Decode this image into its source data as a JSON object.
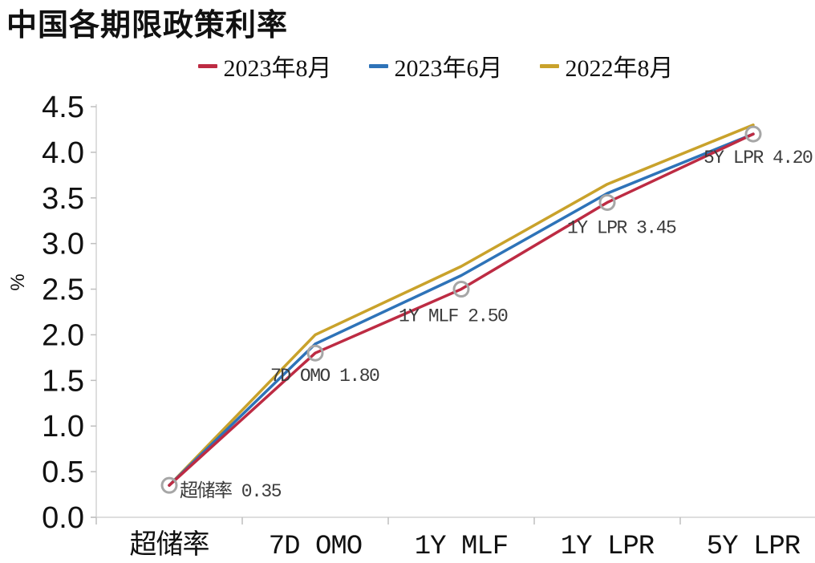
{
  "title": "中国各期限政策利率",
  "legend": [
    {
      "label": "2023年8月",
      "color": "#bd2b43"
    },
    {
      "label": "2023年6月",
      "color": "#2e73b8"
    },
    {
      "label": "2022年8月",
      "color": "#c9a22b"
    }
  ],
  "chart_data": {
    "type": "line",
    "title": "中国各期限政策利率",
    "categories": [
      "超储率",
      "7D OMO",
      "1Y MLF",
      "1Y LPR",
      "5Y LPR"
    ],
    "series": [
      {
        "name": "2023年8月",
        "color": "#bd2b43",
        "values": [
          0.35,
          1.8,
          2.5,
          3.45,
          4.2
        ],
        "markers": true
      },
      {
        "name": "2023年6月",
        "color": "#2e73b8",
        "values": [
          0.35,
          1.9,
          2.65,
          3.55,
          4.2
        ],
        "markers": false
      },
      {
        "name": "2022年8月",
        "color": "#c9a22b",
        "values": [
          0.35,
          2.0,
          2.75,
          3.65,
          4.3
        ],
        "markers": false
      }
    ],
    "point_labels": [
      "超储率 0.35",
      "7D OMO 1.80",
      "1Y MLF 2.50",
      "1Y LPR 3.45",
      "5Y LPR 4.20"
    ],
    "xlabel": "",
    "ylabel": "%",
    "ylim": [
      0,
      4.5
    ],
    "ytick_labels": [
      "0.0",
      "0.5",
      "1.0",
      "1.5",
      "2.0",
      "2.5",
      "3.0",
      "3.5",
      "4.0",
      "4.5"
    ],
    "grid": false,
    "legend_position": "top",
    "marker_color": "#a6a6a6",
    "axis_color": "#d4d4d4",
    "tick_color": "#bfbfbf",
    "text_color": "#111111",
    "point_label_color": "#3c3c3c"
  }
}
